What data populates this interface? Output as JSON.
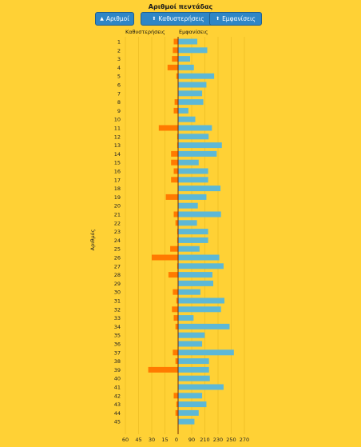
{
  "title": "Αριθμοί πεντάδας",
  "buttons": [
    {
      "label": "Αριθμοί",
      "icon": "caret-up-icon"
    },
    {
      "label": "Καθυστερήσεις",
      "icon": "caret-up-icon"
    },
    {
      "label": "Εμφανίσεις",
      "icon": "caret-up-icon"
    }
  ],
  "colors": {
    "background": "#FFD135",
    "delays": "#FF7A00",
    "appearances": "#5DB8D6",
    "button": "#2F86C6"
  },
  "chart_data": {
    "type": "bar",
    "ylabel": "Αριθμός",
    "categories": [
      "1",
      "2",
      "3",
      "4",
      "5",
      "6",
      "7",
      "8",
      "9",
      "10",
      "11",
      "12",
      "13",
      "14",
      "15",
      "16",
      "17",
      "18",
      "19",
      "20",
      "21",
      "22",
      "23",
      "24",
      "25",
      "26",
      "27",
      "28",
      "29",
      "30",
      "31",
      "32",
      "33",
      "34",
      "35",
      "36",
      "37",
      "38",
      "39",
      "40",
      "41",
      "42",
      "43",
      "44",
      "45"
    ],
    "series": [
      {
        "name": "Καθυστερήσεις",
        "side": "left",
        "values": [
          5,
          6,
          7,
          12,
          2,
          0,
          0,
          4,
          5,
          0,
          22,
          1,
          1,
          8,
          8,
          5,
          8,
          0,
          14,
          0,
          5,
          3,
          1,
          1,
          9,
          30,
          1,
          11,
          0,
          6,
          2,
          7,
          5,
          3,
          0,
          0,
          6,
          3,
          34,
          0,
          0,
          5,
          2,
          3,
          0
        ]
      },
      {
        "name": "Εμφανίσεις",
        "side": "right",
        "values": [
          112,
          170,
          70,
          92,
          210,
          165,
          140,
          147,
          60,
          100,
          197,
          178,
          255,
          225,
          120,
          175,
          175,
          247,
          165,
          115,
          250,
          110,
          175,
          175,
          125,
          240,
          265,
          200,
          205,
          130,
          270,
          250,
          90,
          300,
          155,
          140,
          325,
          180,
          180,
          185,
          265,
          140,
          165,
          120,
          95
        ]
      }
    ],
    "left_axis": {
      "ticks": [
        "60",
        "45",
        "30",
        "15",
        "0"
      ],
      "range": [
        60,
        0
      ]
    },
    "right_axis": {
      "ticks": [
        "90",
        "210",
        "230",
        "250",
        "270"
      ]
    }
  }
}
